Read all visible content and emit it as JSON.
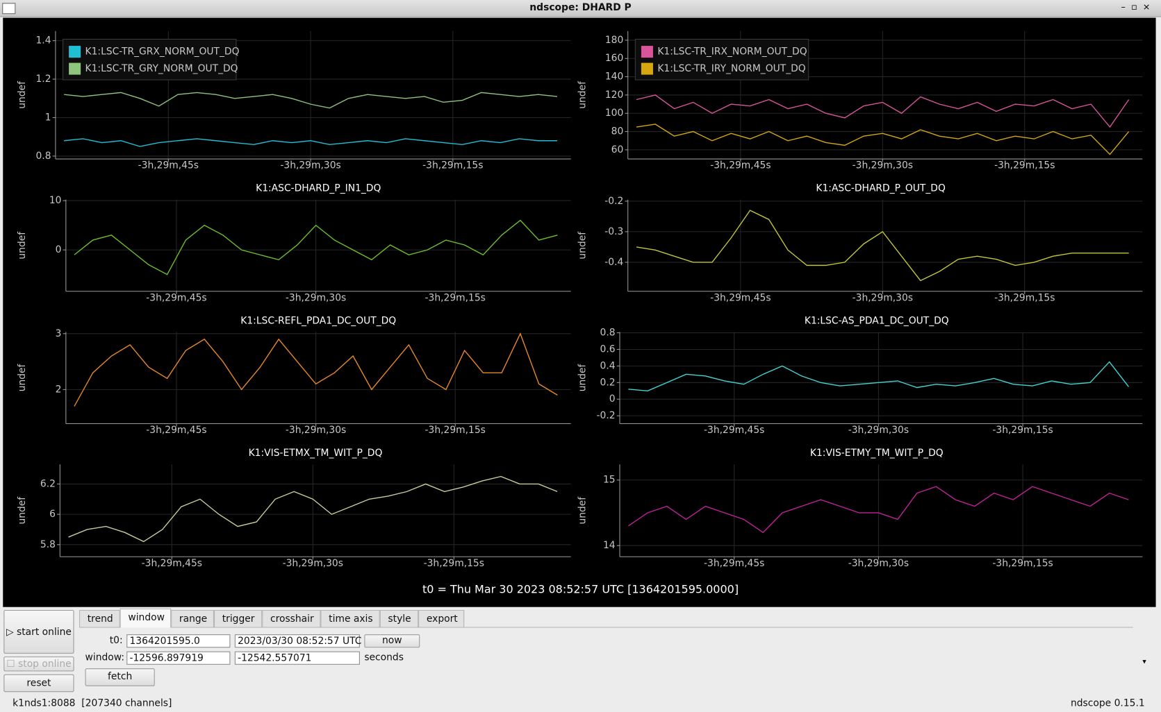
{
  "window_title": "ndscope: DHARD P",
  "chart_data": [
    {
      "type": "line",
      "ylabel": "undef",
      "grid": true,
      "legend": "upper left",
      "xlim": [
        -12596.897919,
        -12542.557071
      ],
      "xticks": [
        {
          "value": -12585,
          "label": "-3h,29m,45s"
        },
        {
          "value": -12570,
          "label": "-3h,29m,30s"
        },
        {
          "value": -12555,
          "label": "-3h,29m,15s"
        }
      ],
      "ylim": [
        0.785,
        1.45
      ],
      "yticks": [
        0.8,
        1,
        1.2,
        1.4
      ],
      "x": [
        -12596,
        -12594,
        -12592,
        -12590,
        -12588,
        -12586,
        -12584,
        -12582,
        -12580,
        -12578,
        -12576,
        -12574,
        -12572,
        -12570,
        -12568,
        -12566,
        -12564,
        -12562,
        -12560,
        -12558,
        -12556,
        -12554,
        -12552,
        -12550,
        -12548,
        -12546,
        -12544
      ],
      "series": [
        {
          "name": "K1:LSC-TR_GRX_NORM_OUT_DQ",
          "color": "#1fbfd4",
          "values": [
            0.88,
            0.89,
            0.87,
            0.88,
            0.85,
            0.87,
            0.88,
            0.89,
            0.88,
            0.87,
            0.86,
            0.88,
            0.87,
            0.88,
            0.86,
            0.87,
            0.88,
            0.87,
            0.89,
            0.88,
            0.87,
            0.86,
            0.88,
            0.87,
            0.89,
            0.88,
            0.88
          ]
        },
        {
          "name": "K1:LSC-TR_GRY_NORM_OUT_DQ",
          "color": "#8fc47c",
          "values": [
            1.12,
            1.11,
            1.12,
            1.13,
            1.1,
            1.06,
            1.12,
            1.13,
            1.12,
            1.1,
            1.11,
            1.12,
            1.1,
            1.07,
            1.05,
            1.1,
            1.12,
            1.11,
            1.1,
            1.11,
            1.08,
            1.09,
            1.13,
            1.12,
            1.11,
            1.12,
            1.11
          ]
        }
      ]
    },
    {
      "type": "line",
      "ylabel": "undef",
      "grid": true,
      "legend": "upper left",
      "xlim": [
        -12596.897919,
        -12542.557071
      ],
      "xticks": [
        {
          "value": -12585,
          "label": "-3h,29m,45s"
        },
        {
          "value": -12570,
          "label": "-3h,29m,30s"
        },
        {
          "value": -12555,
          "label": "-3h,29m,15s"
        }
      ],
      "ylim": [
        50,
        190
      ],
      "yticks": [
        60,
        80,
        100,
        120,
        140,
        160,
        180
      ],
      "x": [
        -12596,
        -12594,
        -12592,
        -12590,
        -12588,
        -12586,
        -12584,
        -12582,
        -12580,
        -12578,
        -12576,
        -12574,
        -12572,
        -12570,
        -12568,
        -12566,
        -12564,
        -12562,
        -12560,
        -12558,
        -12556,
        -12554,
        -12552,
        -12550,
        -12548,
        -12546,
        -12544
      ],
      "series": [
        {
          "name": "K1:LSC-TR_IRX_NORM_OUT_DQ",
          "color": "#d9559a",
          "values": [
            115,
            120,
            105,
            112,
            100,
            110,
            108,
            115,
            105,
            110,
            100,
            95,
            108,
            112,
            100,
            118,
            110,
            105,
            112,
            102,
            110,
            108,
            115,
            105,
            110,
            85,
            115
          ]
        },
        {
          "name": "K1:LSC-TR_IRY_NORM_OUT_DQ",
          "color": "#d4a80e",
          "values": [
            85,
            88,
            75,
            80,
            70,
            78,
            72,
            80,
            70,
            75,
            68,
            65,
            75,
            78,
            72,
            82,
            75,
            72,
            78,
            70,
            75,
            72,
            80,
            72,
            76,
            55,
            80
          ]
        }
      ]
    },
    {
      "type": "line",
      "title": "K1:ASC-DHARD_P_IN1_DQ",
      "ylabel": "undef",
      "grid": true,
      "xlim": [
        -12596.897919,
        -12542.557071
      ],
      "xticks": [
        {
          "value": -12585,
          "label": "-3h,29m,45s"
        },
        {
          "value": -12570,
          "label": "-3h,29m,30s"
        },
        {
          "value": -12555,
          "label": "-3h,29m,15s"
        }
      ],
      "ylim": [
        -8.4,
        10.2
      ],
      "yticks": [
        0,
        10
      ],
      "x": [
        -12596,
        -12594,
        -12592,
        -12590,
        -12588,
        -12586,
        -12584,
        -12582,
        -12580,
        -12578,
        -12576,
        -12574,
        -12572,
        -12570,
        -12568,
        -12566,
        -12564,
        -12562,
        -12560,
        -12558,
        -12556,
        -12554,
        -12552,
        -12550,
        -12548,
        -12546,
        -12544
      ],
      "series": [
        {
          "color": "#6ec02a",
          "values": [
            -1,
            2,
            3,
            0,
            -3,
            -5,
            2,
            5,
            3,
            0,
            -1,
            -2,
            1,
            5,
            2,
            0,
            -2,
            1,
            -1,
            0,
            2,
            1,
            -1,
            3,
            6,
            2,
            3
          ]
        }
      ]
    },
    {
      "type": "line",
      "title": "K1:ASC-DHARD_P_OUT_DQ",
      "ylabel": "undef",
      "grid": true,
      "xlim": [
        -12596.897919,
        -12542.557071
      ],
      "xticks": [
        {
          "value": -12585,
          "label": "-3h,29m,45s"
        },
        {
          "value": -12570,
          "label": "-3h,29m,30s"
        },
        {
          "value": -12555,
          "label": "-3h,29m,15s"
        }
      ],
      "ylim": [
        -0.495,
        -0.195
      ],
      "yticks": [
        -0.2,
        -0.3,
        -0.4
      ],
      "x": [
        -12596,
        -12594,
        -12592,
        -12590,
        -12588,
        -12586,
        -12584,
        -12582,
        -12580,
        -12578,
        -12576,
        -12574,
        -12572,
        -12570,
        -12568,
        -12566,
        -12564,
        -12562,
        -12560,
        -12558,
        -12556,
        -12554,
        -12552,
        -12550,
        -12548,
        -12546,
        -12544
      ],
      "series": [
        {
          "color": "#c3c63a",
          "values": [
            -0.35,
            -0.36,
            -0.38,
            -0.4,
            -0.4,
            -0.32,
            -0.23,
            -0.26,
            -0.36,
            -0.41,
            -0.41,
            -0.4,
            -0.34,
            -0.3,
            -0.38,
            -0.46,
            -0.43,
            -0.39,
            -0.38,
            -0.39,
            -0.41,
            -0.4,
            -0.38,
            -0.37,
            -0.37,
            -0.37,
            -0.37
          ]
        }
      ]
    },
    {
      "type": "line",
      "title": "K1:LSC-REFL_PDA1_DC_OUT_DQ",
      "ylabel": "undef",
      "grid": true,
      "xlim": [
        -12596.897919,
        -12542.557071
      ],
      "xticks": [
        {
          "value": -12585,
          "label": "-3h,29m,45s"
        },
        {
          "value": -12570,
          "label": "-3h,29m,30s"
        },
        {
          "value": -12555,
          "label": "-3h,29m,15s"
        }
      ],
      "ylim": [
        1.39,
        3.03
      ],
      "yticks": [
        3,
        2
      ],
      "x": [
        -12596,
        -12594,
        -12592,
        -12590,
        -12588,
        -12586,
        -12584,
        -12582,
        -12580,
        -12578,
        -12576,
        -12574,
        -12572,
        -12570,
        -12568,
        -12566,
        -12564,
        -12562,
        -12560,
        -12558,
        -12556,
        -12554,
        -12552,
        -12550,
        -12548,
        -12546,
        -12544
      ],
      "series": [
        {
          "color": "#e8892a",
          "values": [
            1.7,
            2.3,
            2.6,
            2.8,
            2.4,
            2.2,
            2.7,
            2.9,
            2.5,
            2.0,
            2.4,
            2.9,
            2.5,
            2.1,
            2.3,
            2.6,
            2.0,
            2.4,
            2.8,
            2.2,
            2.0,
            2.7,
            2.3,
            2.3,
            3.0,
            2.1,
            1.9
          ]
        }
      ]
    },
    {
      "type": "line",
      "title": "K1:LSC-AS_PDA1_DC_OUT_DQ",
      "ylabel": "undef",
      "grid": true,
      "xlim": [
        -12596.897919,
        -12542.557071
      ],
      "xticks": [
        {
          "value": -12585,
          "label": "-3h,29m,45s"
        },
        {
          "value": -12570,
          "label": "-3h,29m,30s"
        },
        {
          "value": -12555,
          "label": "-3h,29m,15s"
        }
      ],
      "ylim": [
        -0.295,
        0.81
      ],
      "yticks": [
        0.8,
        0.6,
        0.4,
        0.2,
        0,
        -0.2
      ],
      "x": [
        -12596,
        -12594,
        -12592,
        -12590,
        -12588,
        -12586,
        -12584,
        -12582,
        -12580,
        -12578,
        -12576,
        -12574,
        -12572,
        -12570,
        -12568,
        -12566,
        -12564,
        -12562,
        -12560,
        -12558,
        -12556,
        -12554,
        -12552,
        -12550,
        -12548,
        -12546,
        -12544
      ],
      "series": [
        {
          "color": "#41d6d6",
          "values": [
            0.12,
            0.1,
            0.2,
            0.3,
            0.28,
            0.22,
            0.18,
            0.3,
            0.4,
            0.28,
            0.2,
            0.16,
            0.18,
            0.2,
            0.22,
            0.14,
            0.18,
            0.16,
            0.2,
            0.25,
            0.18,
            0.16,
            0.22,
            0.18,
            0.2,
            0.45,
            0.15
          ]
        }
      ]
    },
    {
      "type": "line",
      "title": "K1:VIS-ETMX_TM_WIT_P_DQ",
      "ylabel": "undef",
      "grid": true,
      "xlim": [
        -12596.897919,
        -12542.557071
      ],
      "xticks": [
        {
          "value": -12585,
          "label": "-3h,29m,45s"
        },
        {
          "value": -12570,
          "label": "-3h,29m,30s"
        },
        {
          "value": -12555,
          "label": "-3h,29m,15s"
        }
      ],
      "ylim": [
        5.72,
        6.33
      ],
      "yticks": [
        6.2,
        6,
        5.8
      ],
      "x": [
        -12596,
        -12594,
        -12592,
        -12590,
        -12588,
        -12586,
        -12584,
        -12582,
        -12580,
        -12578,
        -12576,
        -12574,
        -12572,
        -12570,
        -12568,
        -12566,
        -12564,
        -12562,
        -12560,
        -12558,
        -12556,
        -12554,
        -12552,
        -12550,
        -12548,
        -12546,
        -12544
      ],
      "series": [
        {
          "color": "#c9cc9a",
          "values": [
            5.85,
            5.9,
            5.92,
            5.88,
            5.82,
            5.9,
            6.05,
            6.1,
            6.0,
            5.92,
            5.95,
            6.1,
            6.15,
            6.1,
            6.0,
            6.05,
            6.1,
            6.12,
            6.15,
            6.2,
            6.15,
            6.18,
            6.22,
            6.25,
            6.2,
            6.2,
            6.15
          ]
        }
      ]
    },
    {
      "type": "line",
      "title": "K1:VIS-ETMY_TM_WIT_P_DQ",
      "ylabel": "undef",
      "grid": true,
      "xlim": [
        -12596.897919,
        -12542.557071
      ],
      "xticks": [
        {
          "value": -12585,
          "label": "-3h,29m,45s"
        },
        {
          "value": -12570,
          "label": "-3h,29m,30s"
        },
        {
          "value": -12555,
          "label": "-3h,29m,15s"
        }
      ],
      "ylim": [
        13.83,
        15.24
      ],
      "yticks": [
        15,
        14
      ],
      "x": [
        -12596,
        -12594,
        -12592,
        -12590,
        -12588,
        -12586,
        -12584,
        -12582,
        -12580,
        -12578,
        -12576,
        -12574,
        -12572,
        -12570,
        -12568,
        -12566,
        -12564,
        -12562,
        -12560,
        -12558,
        -12556,
        -12554,
        -12552,
        -12550,
        -12548,
        -12546,
        -12544
      ],
      "series": [
        {
          "color": "#c1219a",
          "values": [
            14.3,
            14.5,
            14.6,
            14.4,
            14.6,
            14.5,
            14.4,
            14.2,
            14.5,
            14.6,
            14.7,
            14.6,
            14.5,
            14.5,
            14.4,
            14.8,
            14.9,
            14.7,
            14.6,
            14.8,
            14.7,
            14.9,
            14.8,
            14.7,
            14.6,
            14.8,
            14.7
          ]
        }
      ]
    }
  ],
  "t0_label": "t0 = Thu Mar 30 2023 08:52:57 UTC [1364201595.0000]",
  "buttons": {
    "start": "start online",
    "stop": "stop online",
    "reset": "reset"
  },
  "tabs": [
    "trend",
    "window",
    "range",
    "trigger",
    "crosshair",
    "time axis",
    "style",
    "export"
  ],
  "window_tab": {
    "t0_label": "t0:",
    "t0_gps": "1364201595.0",
    "t0_utc": "2023/03/30 08:52:57 UTC",
    "now": "now",
    "window_label": "window:",
    "window_start": "-12596.897919",
    "window_end": "-12542.557071",
    "units": "seconds",
    "fetch": "fetch"
  },
  "status": {
    "server": "k1nds1:8088  [207340 channels]",
    "version": "ndscope 0.15.1"
  }
}
